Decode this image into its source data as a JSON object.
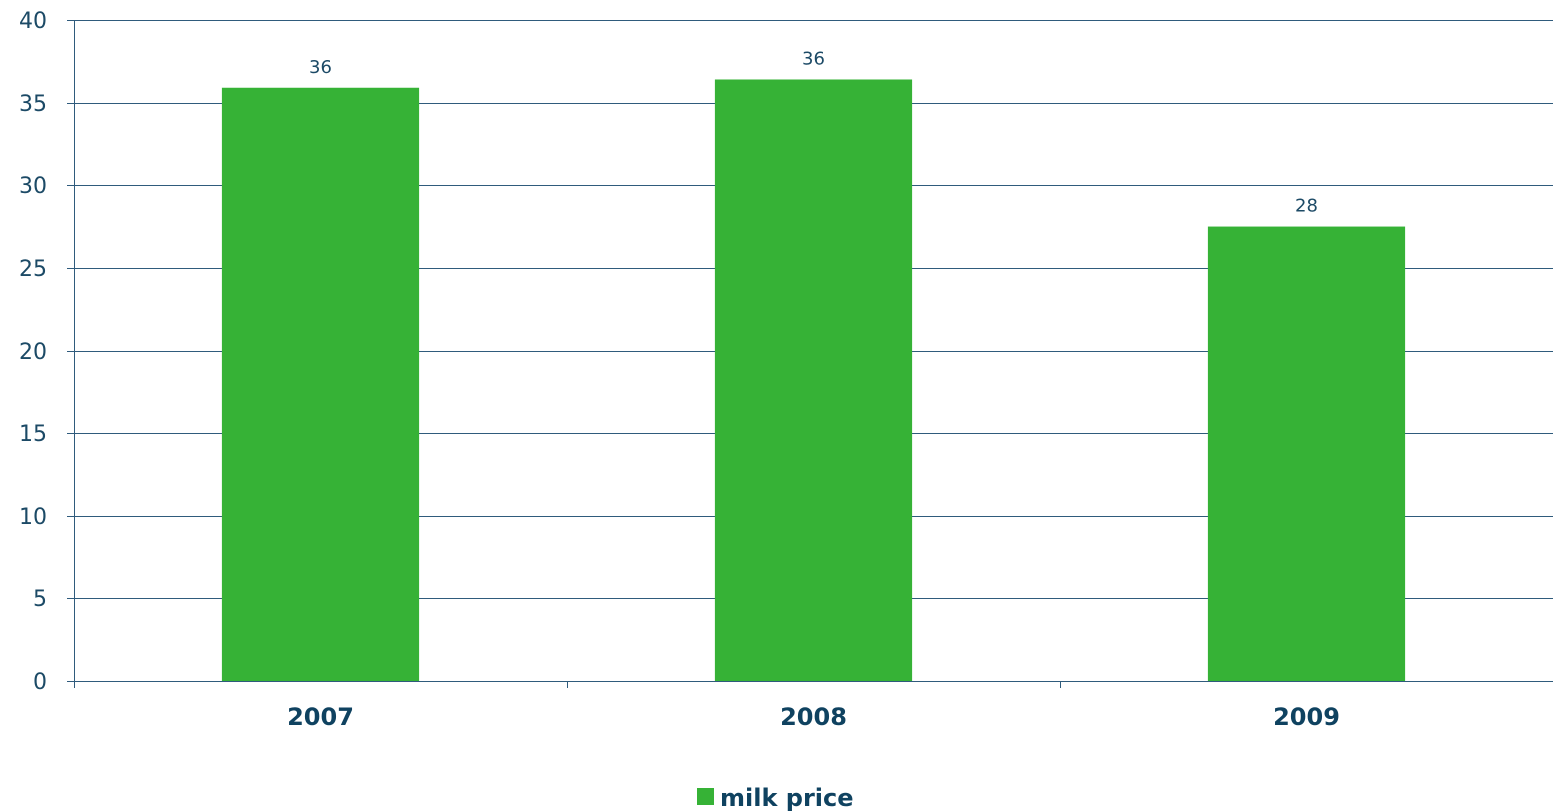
{
  "chart_data": {
    "type": "bar",
    "categories": [
      "2007",
      "2008",
      "2009"
    ],
    "series": [
      {
        "name": "milk price",
        "values": [
          35.9,
          36.4,
          27.5
        ],
        "data_labels": [
          "36",
          "36",
          "28"
        ],
        "color": "#36b236"
      }
    ],
    "ylim": [
      0,
      40
    ],
    "y_ticks": [
      0,
      5,
      10,
      15,
      20,
      25,
      30,
      35,
      40
    ],
    "y_tick_labels": [
      "0",
      "5",
      "10",
      "15",
      "20",
      "25",
      "30",
      "35",
      "40"
    ],
    "grid": true,
    "legend_position": "bottom-center",
    "colors": {
      "grid": "#2f5b7c",
      "text": "#1c4a66",
      "category_text": "#0f4260"
    }
  }
}
